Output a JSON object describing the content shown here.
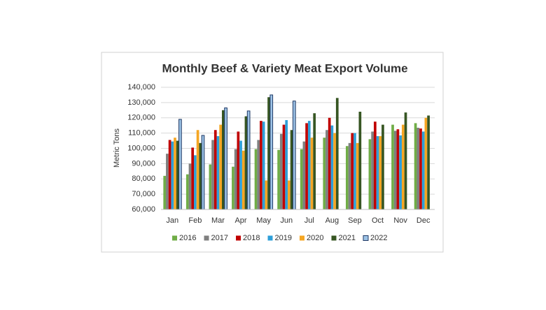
{
  "chart_data": {
    "type": "bar",
    "title": "Monthly Beef & Variety Meat Export Volume",
    "y_label": "Metric Tons",
    "categories": [
      "Jan",
      "Feb",
      "Mar",
      "Apr",
      "May",
      "Jun",
      "Jul",
      "Aug",
      "Sep",
      "Oct",
      "Nov",
      "Dec"
    ],
    "series": [
      {
        "name": "2016",
        "color": "#70ad47",
        "values": [
          82000,
          83000,
          89500,
          88000,
          99500,
          99000,
          99500,
          107000,
          101500,
          106000,
          115500,
          116500
        ]
      },
      {
        "name": "2017",
        "color": "#7f7f7f",
        "values": [
          96500,
          90000,
          105500,
          99500,
          105500,
          109500,
          104500,
          112000,
          103500,
          111000,
          111500,
          113500
        ]
      },
      {
        "name": "2018",
        "color": "#c00000",
        "values": [
          105500,
          100500,
          112000,
          111000,
          118000,
          115500,
          116500,
          120000,
          110000,
          117500,
          112500,
          113000
        ]
      },
      {
        "name": "2019",
        "color": "#2e9fd9",
        "values": [
          104500,
          95500,
          108000,
          105000,
          117500,
          118500,
          118000,
          115000,
          110000,
          108000,
          108500,
          111000
        ]
      },
      {
        "name": "2020",
        "color": "#f5a623",
        "values": [
          107000,
          112000,
          115500,
          98500,
          79000,
          79000,
          107000,
          110000,
          103500,
          108000,
          115500,
          120000
        ]
      },
      {
        "name": "2021",
        "color": "#375623",
        "values": [
          105000,
          103500,
          125000,
          121000,
          133500,
          112000,
          123000,
          133000,
          124000,
          115500,
          123500,
          121500
        ]
      },
      {
        "name": "2022",
        "color": "#9dc3e6",
        "values": [
          119000,
          108500,
          126500,
          124500,
          135000,
          131000,
          null,
          null,
          null,
          null,
          null,
          null
        ]
      }
    ],
    "ylim": [
      60000,
      140000
    ],
    "yticks": [
      {
        "value": 60000,
        "label": "60,000"
      },
      {
        "value": 70000,
        "label": "70,000"
      },
      {
        "value": 80000,
        "label": "80,000"
      },
      {
        "value": 90000,
        "label": "90,000"
      },
      {
        "value": 100000,
        "label": "100,000"
      },
      {
        "value": 110000,
        "label": "110,000"
      },
      {
        "value": 120000,
        "label": "120,000"
      },
      {
        "value": 130000,
        "label": "130,000"
      },
      {
        "value": 140000,
        "label": "140,000"
      }
    ],
    "grid": true,
    "legend": "bottom"
  }
}
